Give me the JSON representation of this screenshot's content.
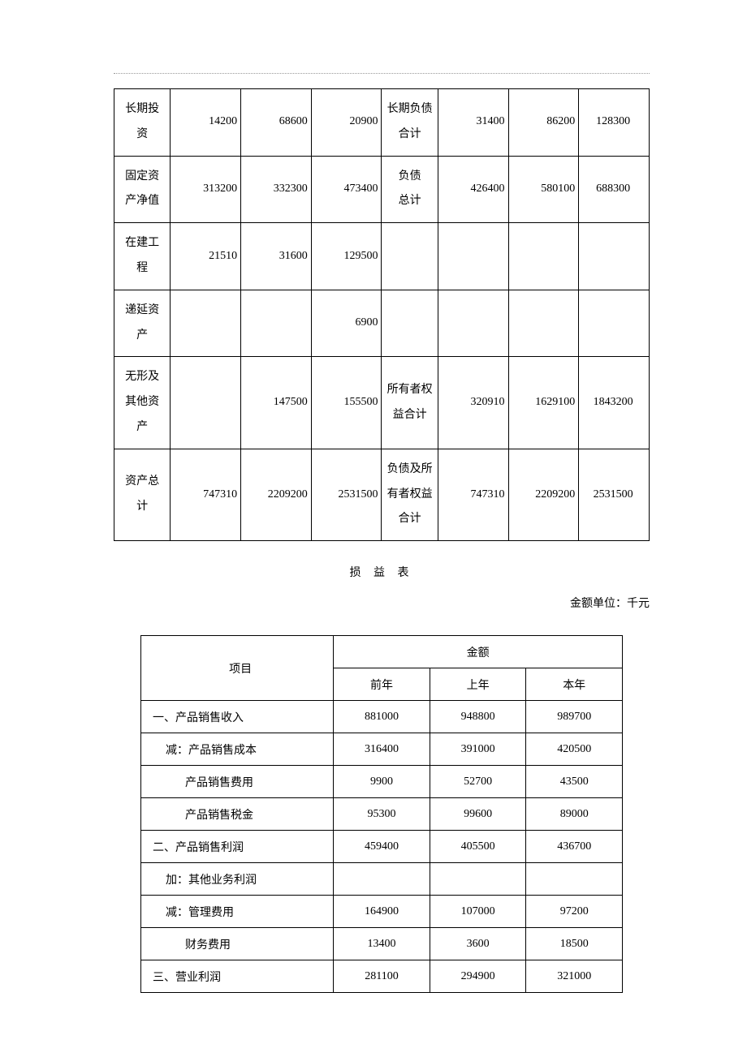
{
  "balance_sheet": {
    "rows": [
      {
        "left_label": "长期投\n资",
        "lv1": "14200",
        "lv2": "68600",
        "lv3": "20900",
        "right_label": "长期负债\n合计",
        "rv1": "31400",
        "rv2": "86200",
        "rv3": "128300"
      },
      {
        "left_label": "固定资\n产净值",
        "lv1": "313200",
        "lv2": "332300",
        "lv3": "473400",
        "right_label": "负债\n总计",
        "rv1": "426400",
        "rv2": "580100",
        "rv3": "688300"
      },
      {
        "left_label": "在建工\n程",
        "lv1": "21510",
        "lv2": "31600",
        "lv3": "129500",
        "right_label": "",
        "rv1": "",
        "rv2": "",
        "rv3": ""
      },
      {
        "left_label": "递延资\n产",
        "lv1": "",
        "lv2": "",
        "lv3": "6900",
        "right_label": "",
        "rv1": "",
        "rv2": "",
        "rv3": ""
      },
      {
        "left_label": "无形及\n其他资\n产",
        "lv1": "",
        "lv2": "147500",
        "lv3": "155500",
        "right_label": "所有者权\n益合计",
        "rv1": "320910",
        "rv2": "1629100",
        "rv3": "1843200"
      },
      {
        "left_label": "资产总\n计",
        "lv1": "747310",
        "lv2": "2209200",
        "lv3": "2531500",
        "right_label": "负债及所\n有者权益\n合计",
        "rv1": "747310",
        "rv2": "2209200",
        "rv3": "2531500"
      }
    ]
  },
  "income_statement": {
    "title": "损 益 表",
    "unit_label": "金额单位：千元",
    "header_item": "项目",
    "header_amount": "金额",
    "header_y1": "前年",
    "header_y2": "上年",
    "header_y3": "本年",
    "rows": [
      {
        "item": "一、产品销售收入",
        "indent": 0,
        "v1": "881000",
        "v2": "948800",
        "v3": "989700"
      },
      {
        "item": "减：产品销售成本",
        "indent": 1,
        "v1": "316400",
        "v2": "391000",
        "v3": "420500"
      },
      {
        "item": "产品销售费用",
        "indent": 2,
        "v1": "9900",
        "v2": "52700",
        "v3": "43500"
      },
      {
        "item": "产品销售税金",
        "indent": 2,
        "v1": "95300",
        "v2": "99600",
        "v3": "89000"
      },
      {
        "item": "二、产品销售利润",
        "indent": 0,
        "v1": "459400",
        "v2": "405500",
        "v3": "436700"
      },
      {
        "item": "加：其他业务利润",
        "indent": 1,
        "v1": "",
        "v2": "",
        "v3": ""
      },
      {
        "item": "减：管理费用",
        "indent": 1,
        "v1": "164900",
        "v2": "107000",
        "v3": "97200"
      },
      {
        "item": "财务费用",
        "indent": 2,
        "v1": "13400",
        "v2": "3600",
        "v3": "18500"
      },
      {
        "item": "三、营业利润",
        "indent": 0,
        "v1": "281100",
        "v2": "294900",
        "v3": "321000"
      }
    ]
  },
  "styling": {
    "background_color": "#ffffff",
    "border_color": "#000000",
    "text_color": "#000000",
    "font_family": "SimSun",
    "base_fontsize": 14
  }
}
